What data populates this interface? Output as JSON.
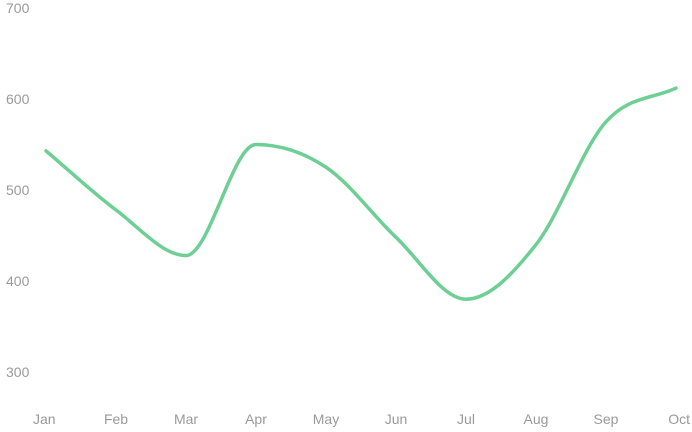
{
  "chart_data": {
    "type": "line",
    "title": "",
    "xlabel": "",
    "ylabel": "",
    "categories": [
      "Jan",
      "Feb",
      "Mar",
      "Apr",
      "May",
      "Jun",
      "Jul",
      "Aug",
      "Sep",
      "Oct"
    ],
    "series": [
      {
        "values": [
          543,
          478,
          428,
          550,
          525,
          448,
          380,
          440,
          575,
          612
        ],
        "color": "#6dcf94"
      }
    ],
    "ylim": [
      300,
      700
    ],
    "yticks": [
      300,
      400,
      500,
      600,
      700
    ],
    "ytick_labels": [
      "300",
      "400",
      "500",
      "600",
      "700"
    ],
    "grid": false,
    "legend": "none",
    "line_style": "smooth"
  }
}
